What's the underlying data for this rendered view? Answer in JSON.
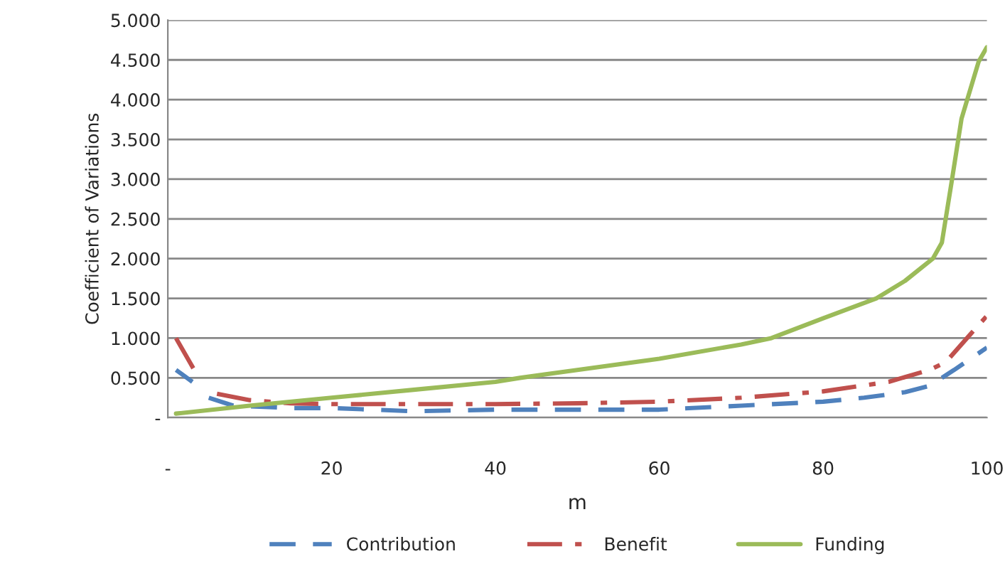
{
  "chart_data": {
    "type": "line",
    "xlabel": "m",
    "ylabel": "Coefficient of Variations",
    "xlim": [
      0,
      100
    ],
    "ylim": [
      0,
      5
    ],
    "xticks": [
      {
        "value": 0,
        "label": "-"
      },
      20,
      40,
      60,
      80,
      100
    ],
    "yticks": [
      {
        "value": 0,
        "label": "-"
      },
      {
        "value": 0.5,
        "label": "0.500"
      },
      {
        "value": 1,
        "label": "1.000"
      },
      {
        "value": 1.5,
        "label": "1.500"
      },
      {
        "value": 2,
        "label": "2.000"
      },
      {
        "value": 2.5,
        "label": "2.500"
      },
      {
        "value": 3,
        "label": "3.000"
      },
      {
        "value": 3.5,
        "label": "3.500"
      },
      {
        "value": 4,
        "label": "4.000"
      },
      {
        "value": 4.5,
        "label": "4.500"
      },
      {
        "value": 5,
        "label": "5.000"
      }
    ],
    "grid": "y",
    "legend": "bottom",
    "series": [
      {
        "name": "Contribution",
        "color": "#4f81bd",
        "line_style": "dashed",
        "x": [
          1,
          3,
          4,
          5,
          8,
          15,
          20,
          30,
          40,
          50,
          60,
          70,
          80,
          85,
          90,
          93,
          96,
          100
        ],
        "values": [
          0.6,
          0.45,
          null,
          0.25,
          0.15,
          0.12,
          0.12,
          0.08,
          0.1,
          0.1,
          0.1,
          0.15,
          0.2,
          0.25,
          0.32,
          0.4,
          0.6,
          0.88
        ]
      },
      {
        "name": "Benefit",
        "color": "#c0504d",
        "line_style": "dashdot",
        "x": [
          1,
          3.5,
          4.5,
          6,
          10,
          15,
          20,
          30,
          40,
          50,
          60,
          70,
          80,
          88,
          93,
          95,
          98,
          100
        ],
        "values": [
          1.0,
          0.55,
          null,
          0.3,
          0.22,
          0.18,
          0.17,
          0.17,
          0.17,
          0.18,
          0.2,
          0.25,
          0.33,
          0.45,
          0.6,
          0.7,
          1.05,
          1.28
        ]
      },
      {
        "name": "Funding",
        "color": "#9bbb59",
        "line_style": "solid",
        "x": [
          1,
          10,
          20,
          30,
          40,
          43,
          50,
          60,
          70,
          73.7,
          80,
          86.5,
          90,
          93.4,
          94.5,
          95.7,
          96.9,
          99,
          100
        ],
        "values": [
          0.05,
          0.15,
          0.25,
          0.35,
          0.45,
          0.5,
          0.6,
          0.74,
          0.92,
          1.0,
          1.25,
          1.5,
          1.72,
          2.0,
          2.2,
          2.97,
          3.76,
          4.48,
          4.66
        ]
      }
    ]
  }
}
